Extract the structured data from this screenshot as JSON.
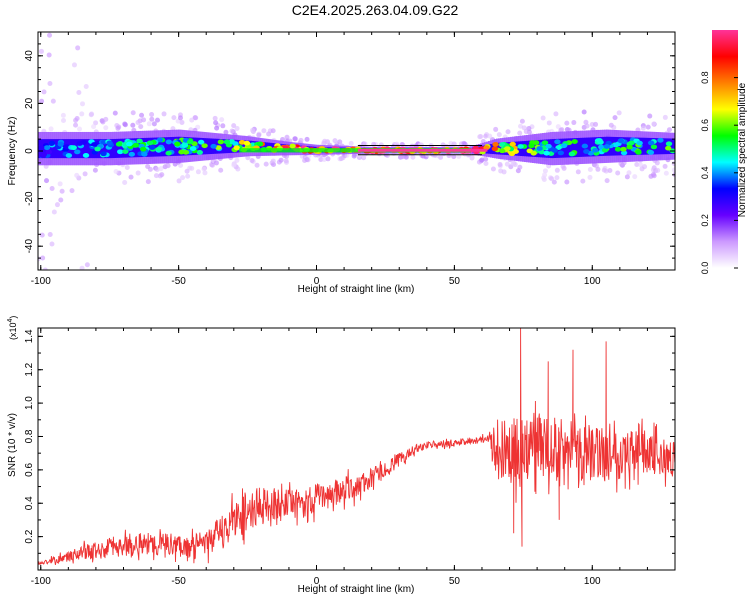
{
  "title": "C2E4.2025.263.04.09.G22",
  "chart_data": [
    {
      "type": "heatmap",
      "title": "",
      "xlabel": "Height of straight line (km)",
      "ylabel": "Frequency (Hz)",
      "xlim": [
        -101,
        130
      ],
      "ylim": [
        -50,
        50
      ],
      "x_ticks": [
        -100,
        -50,
        0,
        50,
        100
      ],
      "y_ticks": [
        -40,
        -20,
        0,
        20,
        40
      ],
      "colorbar": {
        "label": "Normalized spectral amplitude",
        "range": [
          0,
          1
        ],
        "ticks": [
          "0.0",
          "0.2",
          "0.4",
          "0.6",
          "0.8"
        ],
        "colors": [
          "#ffffff",
          "#cc99ff",
          "#6600ff",
          "#0000ff",
          "#00ffff",
          "#00ff00",
          "#ffff00",
          "#ff7f00",
          "#ff0000",
          "#ff3399"
        ]
      },
      "band": [
        {
          "x": -100,
          "center": 1,
          "halfwidth": 5,
          "amplitude": 0.35
        },
        {
          "x": -75,
          "center": 1,
          "halfwidth": 5,
          "amplitude": 0.45
        },
        {
          "x": -50,
          "center": 2,
          "halfwidth": 5,
          "amplitude": 0.5
        },
        {
          "x": -25,
          "center": 2,
          "halfwidth": 3,
          "amplitude": 0.6
        },
        {
          "x": -10,
          "center": 1,
          "halfwidth": 2,
          "amplitude": 0.85
        },
        {
          "x": 0,
          "center": 0.5,
          "halfwidth": 1.5,
          "amplitude": 0.95
        },
        {
          "x": 20,
          "center": 0.3,
          "halfwidth": 1,
          "amplitude": 1.0
        },
        {
          "x": 55,
          "center": 0.3,
          "halfwidth": 1,
          "amplitude": 1.0
        },
        {
          "x": 65,
          "center": 1,
          "halfwidth": 3,
          "amplitude": 0.7
        },
        {
          "x": 85,
          "center": 1,
          "halfwidth": 5,
          "amplitude": 0.5
        },
        {
          "x": 105,
          "center": 2,
          "halfwidth": 5,
          "amplitude": 0.5
        },
        {
          "x": 130,
          "center": 2,
          "halfwidth": 4,
          "amplitude": 0.55
        }
      ]
    },
    {
      "type": "line",
      "title": "",
      "xlabel": "Height of straight line (km)",
      "ylabel": "SNR (10 * v/v)",
      "y_multiplier": "(x10",
      "y_multiplier_exp": "4",
      "y_multiplier_close": ")",
      "xlim": [
        -101,
        130
      ],
      "ylim": [
        0,
        1.45
      ],
      "x_ticks": [
        -100,
        -50,
        0,
        50,
        100
      ],
      "y_ticks": [
        0.2,
        0.4,
        0.6,
        0.8,
        1.0,
        1.2,
        1.4
      ],
      "y_tick_labels": [
        "0.2",
        "0.4",
        "0.6",
        "0.8",
        "1.0",
        "1.2",
        "1.4"
      ],
      "color": "#ee3333",
      "series": [
        {
          "name": "SNR",
          "x": [
            -100,
            -90,
            -80,
            -70,
            -60,
            -50,
            -45,
            -40,
            -35,
            -30,
            -25,
            -20,
            -15,
            -10,
            -5,
            0,
            5,
            10,
            15,
            20,
            25,
            30,
            35,
            40,
            45,
            50,
            55,
            60,
            63,
            65,
            70,
            75,
            80,
            85,
            90,
            95,
            100,
            105,
            110,
            115,
            120,
            125,
            130
          ],
          "y": [
            0.04,
            0.08,
            0.12,
            0.15,
            0.16,
            0.15,
            0.14,
            0.16,
            0.22,
            0.3,
            0.35,
            0.38,
            0.4,
            0.38,
            0.4,
            0.43,
            0.45,
            0.48,
            0.5,
            0.55,
            0.6,
            0.66,
            0.72,
            0.75,
            0.75,
            0.76,
            0.77,
            0.78,
            0.8,
            0.72,
            0.7,
            0.72,
            0.75,
            0.73,
            0.72,
            0.71,
            0.7,
            0.7,
            0.7,
            0.71,
            0.7,
            0.68,
            0.68
          ],
          "noise": [
            0.01,
            0.03,
            0.06,
            0.07,
            0.07,
            0.07,
            0.07,
            0.08,
            0.1,
            0.12,
            0.12,
            0.12,
            0.1,
            0.1,
            0.09,
            0.09,
            0.08,
            0.08,
            0.07,
            0.06,
            0.05,
            0.04,
            0.03,
            0.02,
            0.02,
            0.02,
            0.02,
            0.02,
            0.03,
            0.18,
            0.2,
            0.22,
            0.2,
            0.2,
            0.18,
            0.18,
            0.17,
            0.17,
            0.16,
            0.15,
            0.14,
            0.12,
            0.12
          ],
          "peaks": [
            {
              "x": 74,
              "y": 1.45
            },
            {
              "x": 74.5,
              "y": 0.14
            },
            {
              "x": 71.5,
              "y": 0.22
            },
            {
              "x": 93,
              "y": 1.32
            },
            {
              "x": 105,
              "y": 1.37
            },
            {
              "x": 84,
              "y": 1.25
            },
            {
              "x": 88,
              "y": 0.3
            }
          ]
        }
      ]
    }
  ]
}
